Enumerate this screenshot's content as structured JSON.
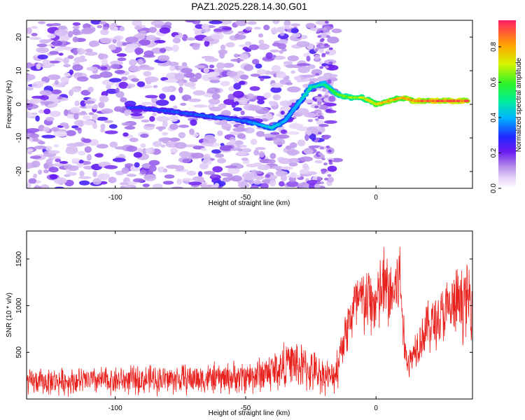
{
  "title": "PAZ1.2025.228.14.30.G01",
  "chart_data": [
    {
      "type": "heatmap",
      "xlabel": "Height of straight line (km)",
      "ylabel": "Frequency (Hz)",
      "xlim": [
        -134,
        37
      ],
      "ylim": [
        -25,
        25
      ],
      "xticks": [
        -100,
        -50,
        0
      ],
      "yticks": [
        -20,
        -10,
        0,
        10,
        20
      ],
      "colorbar": {
        "label": "Normalized spectral amplitude",
        "range": [
          0,
          0.95
        ],
        "ticks": [
          "0.0",
          "0.2",
          "0.4",
          "0.6",
          "0.8"
        ],
        "colormap": "rainbow (white-lavender-purple-blue-cyan-green-yellow-orange-red)"
      },
      "ridge": {
        "description": "dominant frequency track (Hz) vs height (km)",
        "x": [
          -95,
          -90,
          -80,
          -70,
          -60,
          -50,
          -45,
          -40,
          -35,
          -32,
          -28,
          -25,
          -20,
          -15,
          -10,
          -5,
          0,
          5,
          10,
          15,
          20,
          25,
          30,
          35
        ],
        "y": [
          -1,
          -1,
          -2,
          -3,
          -4,
          -5,
          -6,
          -7,
          -5,
          -2,
          2,
          5,
          6,
          3,
          2,
          2,
          0,
          1,
          2,
          1,
          1,
          1,
          1,
          1
        ],
        "amplitude": [
          0.3,
          0.3,
          0.32,
          0.33,
          0.35,
          0.35,
          0.4,
          0.45,
          0.4,
          0.4,
          0.42,
          0.5,
          0.5,
          0.6,
          0.65,
          0.7,
          0.75,
          0.8,
          0.8,
          0.85,
          0.9,
          0.9,
          0.9,
          0.9
        ]
      }
    },
    {
      "type": "line",
      "xlabel": "Height of straight line (km)",
      "ylabel": "SNR (10 * v/v)",
      "xlim": [
        -134,
        37
      ],
      "ylim": [
        0,
        1800
      ],
      "xticks": [
        -100,
        -50,
        0
      ],
      "yticks": [
        500,
        1000,
        1500
      ],
      "series": [
        {
          "color": "#e8201c",
          "x": [
            -134,
            -120,
            -100,
            -80,
            -60,
            -50,
            -45,
            -40,
            -36,
            -34,
            -30,
            -25,
            -20,
            -17,
            -15,
            -13,
            -10,
            -8,
            -5,
            0,
            3,
            6,
            9,
            10,
            11,
            13,
            15,
            20,
            25,
            30,
            35,
            37
          ],
          "y": [
            180,
            190,
            200,
            210,
            220,
            235,
            260,
            300,
            330,
            420,
            360,
            300,
            260,
            220,
            330,
            600,
            850,
            1000,
            1050,
            1020,
            1200,
            1100,
            1300,
            1000,
            500,
            380,
            560,
            780,
            880,
            1000,
            1060,
            1050
          ]
        }
      ]
    }
  ]
}
